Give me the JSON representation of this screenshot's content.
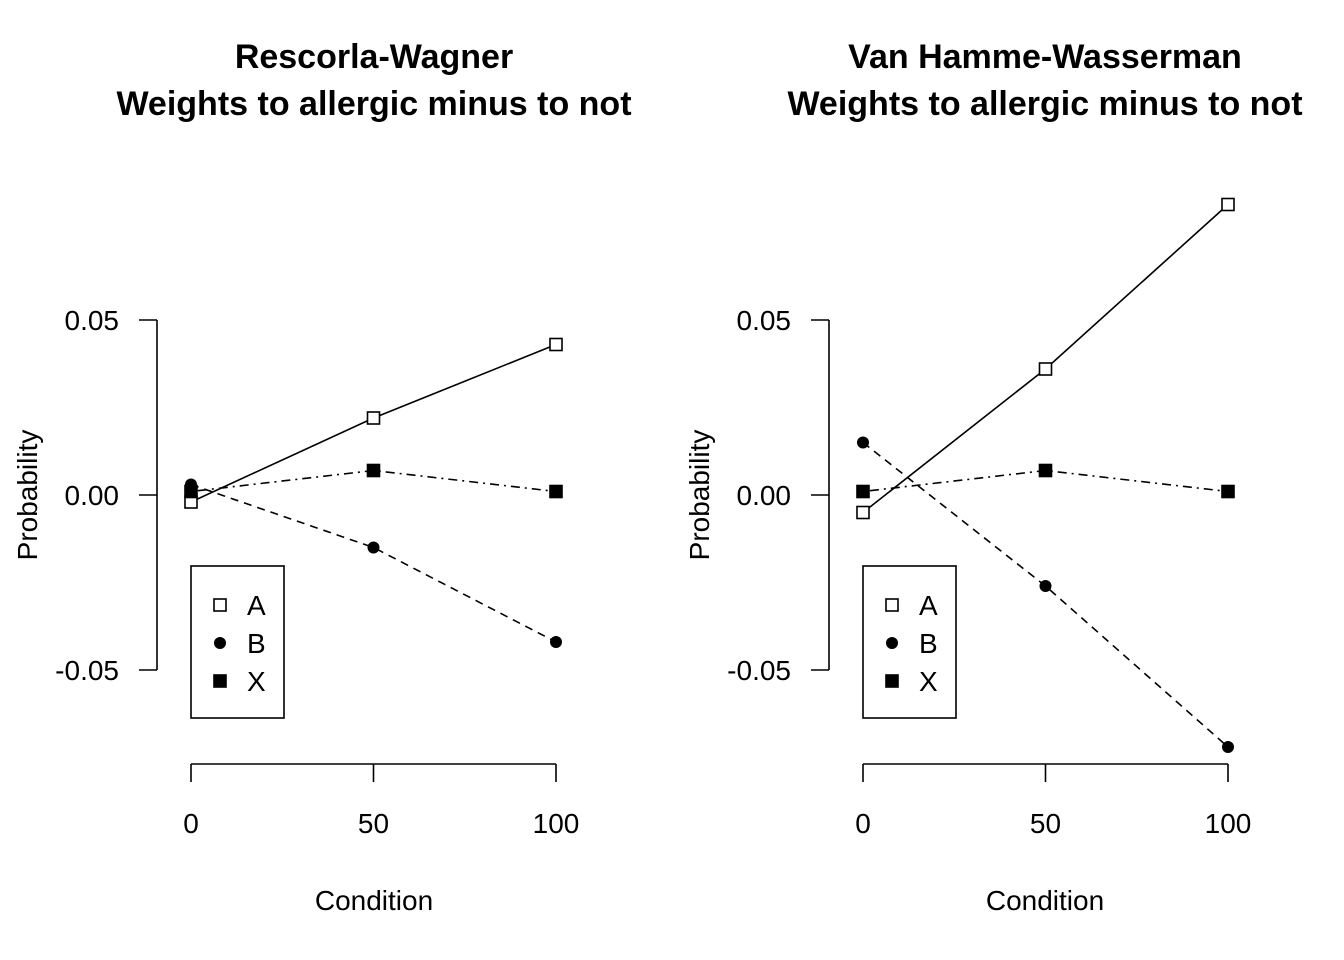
{
  "chart_data": [
    {
      "type": "line",
      "title": [
        "Rescorla-Wagner",
        "Weights to allergic minus to not"
      ],
      "xlabel": "Condition",
      "ylabel": "Probability",
      "x": [
        0,
        50,
        100
      ],
      "xticks": [
        "0",
        "50",
        "100"
      ],
      "yticks": [
        "-0.05",
        "0.00",
        "0.05"
      ],
      "ylim": [
        -0.05,
        0.05
      ],
      "series": [
        {
          "name": "A",
          "values": [
            -0.002,
            0.022,
            0.043
          ],
          "marker": "open-square",
          "linestyle": "solid"
        },
        {
          "name": "B",
          "values": [
            0.003,
            -0.015,
            -0.042
          ],
          "marker": "filled-circle",
          "linestyle": "dashed"
        },
        {
          "name": "X",
          "values": [
            0.001,
            0.007,
            0.001
          ],
          "marker": "filled-square",
          "linestyle": "dotdash"
        }
      ],
      "legend": {
        "position": "bottom-left",
        "entries": [
          "A",
          "B",
          "X"
        ]
      }
    },
    {
      "type": "line",
      "title": [
        "Van Hamme-Wasserman",
        "Weights to allergic minus to not"
      ],
      "xlabel": "Condition",
      "ylabel": "Probability",
      "x": [
        0,
        50,
        100
      ],
      "xticks": [
        "0",
        "50",
        "100"
      ],
      "yticks": [
        "-0.05",
        "0.00",
        "0.05"
      ],
      "ylim": [
        -0.05,
        0.05
      ],
      "series": [
        {
          "name": "A",
          "values": [
            -0.005,
            0.036,
            0.083
          ],
          "marker": "open-square",
          "linestyle": "solid"
        },
        {
          "name": "B",
          "values": [
            0.015,
            -0.026,
            -0.072
          ],
          "marker": "filled-circle",
          "linestyle": "dashed"
        },
        {
          "name": "X",
          "values": [
            0.001,
            0.007,
            0.001
          ],
          "marker": "filled-square",
          "linestyle": "dotdash"
        }
      ],
      "legend": {
        "position": "bottom-left",
        "entries": [
          "A",
          "B",
          "X"
        ]
      }
    }
  ]
}
